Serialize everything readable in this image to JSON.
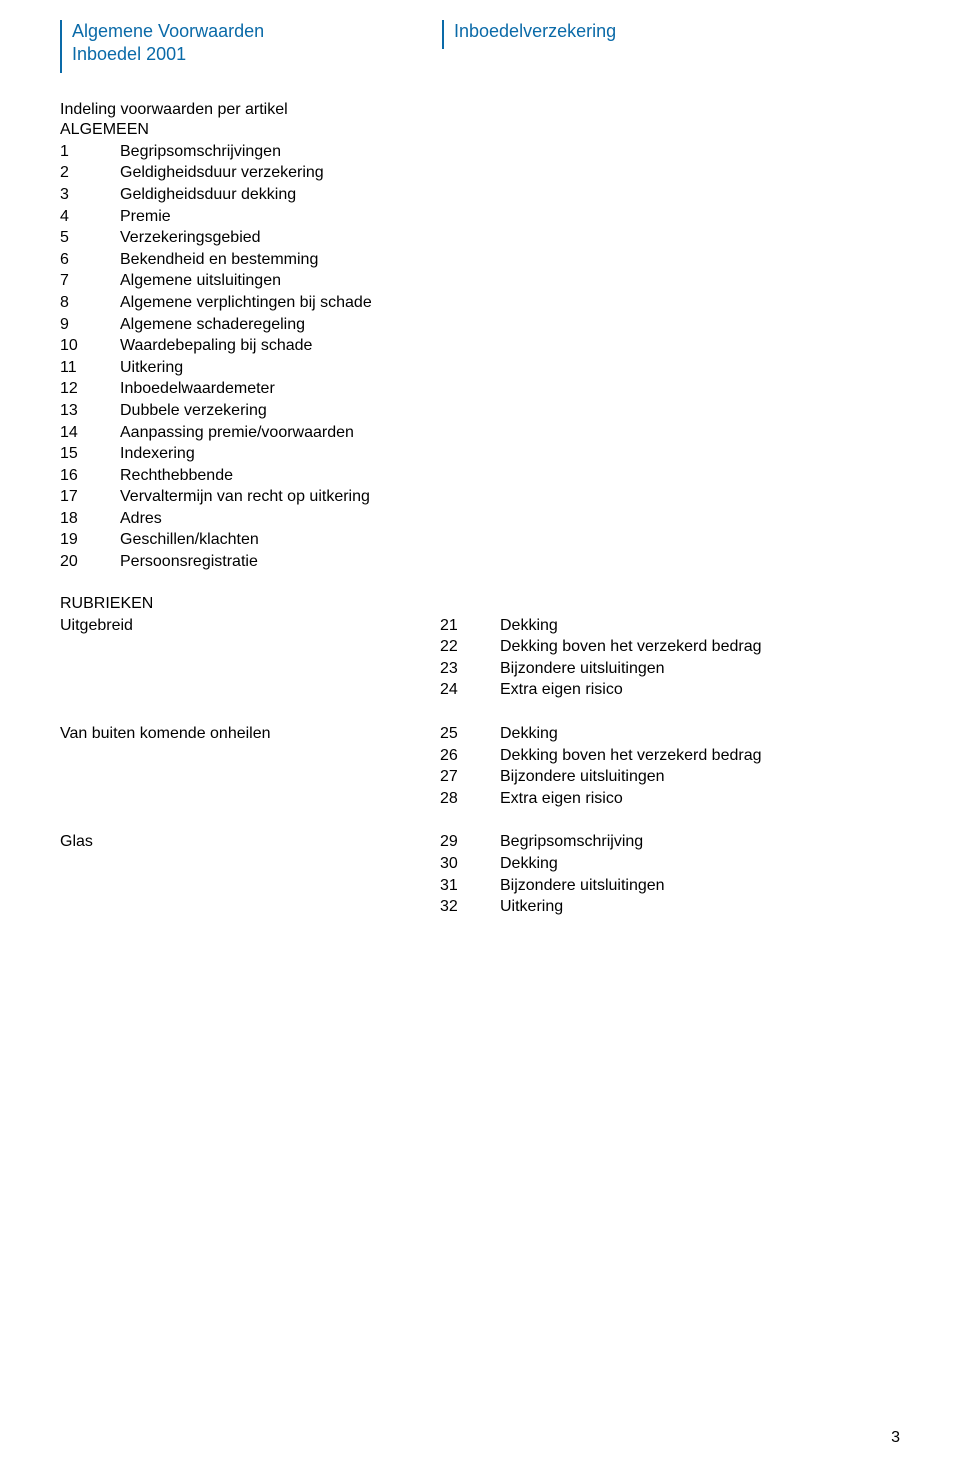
{
  "colors": {
    "accent": "#0a6aa8",
    "text": "#000000",
    "bg": "#ffffff"
  },
  "header": {
    "left_line1": "Algemene Voorwaarden",
    "left_line2": "Inboedel 2001",
    "right": "Inboedelverzekering"
  },
  "intro": "Indeling voorwaarden per artikel",
  "algemeen": {
    "heading": "ALGEMEEN",
    "items": [
      {
        "n": "1",
        "t": "Begripsomschrijvingen"
      },
      {
        "n": "2",
        "t": "Geldigheidsduur verzekering"
      },
      {
        "n": "3",
        "t": "Geldigheidsduur dekking"
      },
      {
        "n": "4",
        "t": "Premie"
      },
      {
        "n": "5",
        "t": "Verzekeringsgebied"
      },
      {
        "n": "6",
        "t": "Bekendheid en bestemming"
      },
      {
        "n": "7",
        "t": "Algemene uitsluitingen"
      },
      {
        "n": "8",
        "t": "Algemene verplichtingen bij schade"
      },
      {
        "n": "9",
        "t": "Algemene schaderegeling"
      },
      {
        "n": "10",
        "t": "Waardebepaling bij schade"
      },
      {
        "n": "11",
        "t": "Uitkering"
      },
      {
        "n": "12",
        "t": "Inboedelwaardemeter"
      },
      {
        "n": "13",
        "t": "Dubbele verzekering"
      },
      {
        "n": "14",
        "t": "Aanpassing premie/voorwaarden"
      },
      {
        "n": "15",
        "t": "Indexering"
      },
      {
        "n": "16",
        "t": "Rechthebbende"
      },
      {
        "n": "17",
        "t": "Vervaltermijn van recht op uitkering"
      },
      {
        "n": "18",
        "t": "Adres"
      },
      {
        "n": "19",
        "t": "Geschillen/klachten"
      },
      {
        "n": "20",
        "t": "Persoonsregistratie"
      }
    ]
  },
  "rubrieken": {
    "heading": "RUBRIEKEN",
    "groups": [
      {
        "label": "Uitgebreid",
        "items": [
          {
            "n": "21",
            "t": "Dekking"
          },
          {
            "n": "22",
            "t": "Dekking boven het verzekerd bedrag"
          },
          {
            "n": "23",
            "t": "Bijzondere uitsluitingen"
          },
          {
            "n": "24",
            "t": "Extra eigen risico"
          }
        ]
      },
      {
        "label": "Van buiten komende onheilen",
        "items": [
          {
            "n": "25",
            "t": "Dekking"
          },
          {
            "n": "26",
            "t": "Dekking boven het verzekerd bedrag"
          },
          {
            "n": "27",
            "t": "Bijzondere uitsluitingen"
          },
          {
            "n": "28",
            "t": "Extra eigen risico"
          }
        ]
      },
      {
        "label": "Glas",
        "items": [
          {
            "n": "29",
            "t": "Begripsomschrijving"
          },
          {
            "n": "30",
            "t": "Dekking"
          },
          {
            "n": "31",
            "t": "Bijzondere uitsluitingen"
          },
          {
            "n": "32",
            "t": "Uitkering"
          }
        ]
      }
    ]
  },
  "page_number": "3"
}
